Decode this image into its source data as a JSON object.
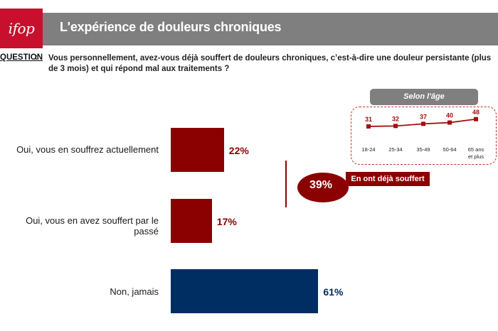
{
  "header": {
    "logo_text": "ifop",
    "title": "L'expérience de douleurs chroniques"
  },
  "question": {
    "label": "QUESTION",
    "colon": ":",
    "text": "Vous personnellement, avez-vous déjà souffert de douleurs chroniques, c’est-à-dire une douleur persistante (plus de 3 mois) et qui répond mal aux traitements ?"
  },
  "colors": {
    "header_gray": "#7f7f7f",
    "logo_red": "#c8102e",
    "dark_red": "#8b0000",
    "navy": "#002d62"
  },
  "chart_data": [
    {
      "type": "bar",
      "orientation": "horizontal",
      "categories": [
        "Oui, vous en souffrez actuellement",
        "Oui, vous en avez souffert par le passé",
        "Non, jamais"
      ],
      "values": [
        22,
        17,
        61
      ],
      "value_labels": [
        "22%",
        "17%",
        "61%"
      ],
      "colors": [
        "#8b0000",
        "#8b0000",
        "#002d62"
      ],
      "unit": "%",
      "xlim": [
        0,
        100
      ],
      "summary": {
        "value_label": "39%",
        "label": "En ont déjà souffert"
      }
    },
    {
      "type": "line",
      "title": "Selon l'âge",
      "categories": [
        "18-24",
        "25-34",
        "35-49",
        "50-64",
        "65 ans et plus"
      ],
      "values": [
        31,
        32,
        37,
        40,
        48
      ],
      "ylim": [
        20,
        60
      ],
      "color": "#a50f0f"
    }
  ]
}
